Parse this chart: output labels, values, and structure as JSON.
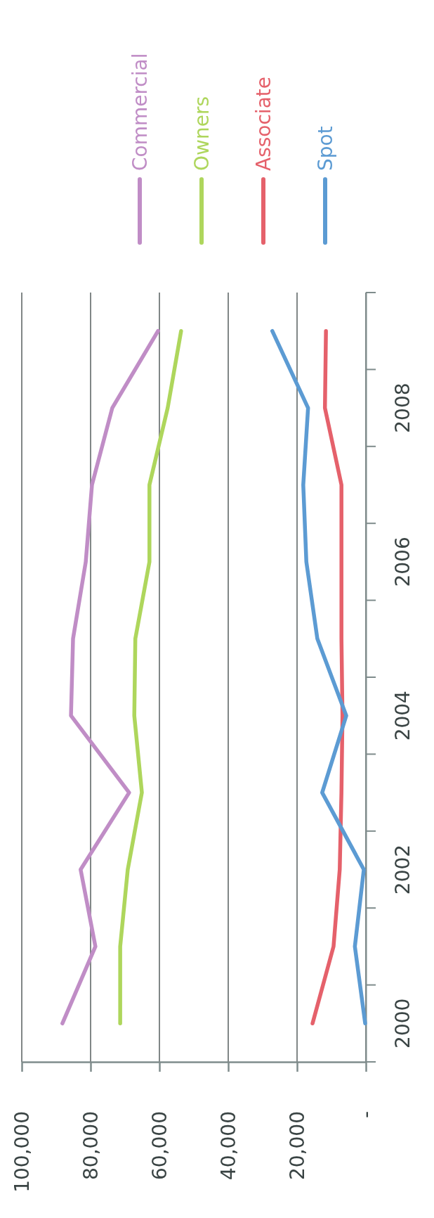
{
  "chart_data": {
    "type": "line",
    "orientation": "horizontal",
    "categories": [
      null,
      "2008",
      null,
      "2006",
      null,
      "2004",
      null,
      "2002",
      null,
      "2000"
    ],
    "series": [
      {
        "name": "Commercial",
        "color": "#c08dc6",
        "values": [
          60400,
          73700,
          79600,
          81400,
          85100,
          85700,
          68800,
          82900,
          78600,
          88200
        ]
      },
      {
        "name": "Owners",
        "color": "#aed65c",
        "values": [
          53700,
          57600,
          62900,
          62900,
          67000,
          67300,
          65100,
          69200,
          71400,
          71400
        ]
      },
      {
        "name": "Associate",
        "color": "#e5616b",
        "values": [
          11600,
          11900,
          7100,
          7100,
          7100,
          6800,
          7100,
          7600,
          9400,
          15500
        ]
      },
      {
        "name": "Spot",
        "color": "#5c9bd3",
        "values": [
          27200,
          16800,
          18200,
          17300,
          14100,
          5700,
          12700,
          600,
          3200,
          200
        ]
      }
    ],
    "xlim": [
      100000,
      0
    ],
    "xticks": [
      {
        "value": 100000,
        "label": "100,000"
      },
      {
        "value": 80000,
        "label": "80,000"
      },
      {
        "value": 60000,
        "label": "60,000"
      },
      {
        "value": 40000,
        "label": "40,000"
      },
      {
        "value": 20000,
        "label": "20,000"
      },
      {
        "value": 0,
        "label": "-"
      }
    ],
    "grid": "x",
    "legend": "top",
    "marker": "none",
    "line_style": "solid"
  }
}
